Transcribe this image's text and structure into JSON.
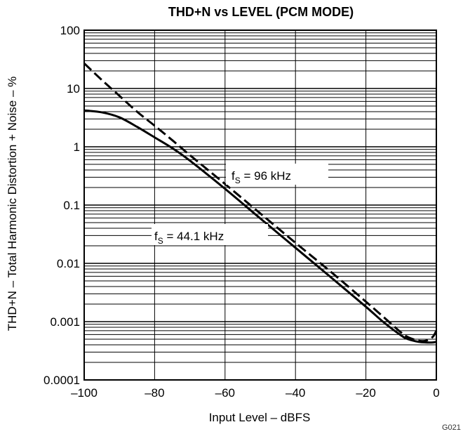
{
  "chart_data": {
    "type": "line",
    "title": "THD+N vs LEVEL (PCM MODE)",
    "xlabel": "Input Level – dBFS",
    "ylabel": "THD+N – Total Harmonic Distortion + Noise – %",
    "xlim": [
      -100,
      0
    ],
    "ylim": [
      0.0001,
      100
    ],
    "y_scale": "log",
    "grid": true,
    "x_ticks": [
      -100,
      -80,
      -60,
      -40,
      -20,
      0
    ],
    "x_tick_labels": [
      "–100",
      "–80",
      "–60",
      "–40",
      "–20",
      "0"
    ],
    "y_ticks": [
      0.0001,
      0.001,
      0.01,
      0.1,
      1,
      10,
      100
    ],
    "y_tick_labels": [
      "0.0001",
      "0.001",
      "0.01",
      "0.1",
      "1",
      "10",
      "100"
    ],
    "series": [
      {
        "name": "fS = 44.1 kHz",
        "style": "solid",
        "x": [
          -100,
          -95,
          -90,
          -85,
          -80,
          -75,
          -70,
          -60,
          -50,
          -40,
          -30,
          -20,
          -15,
          -10,
          -8,
          -5,
          -3,
          -1,
          0
        ],
        "y": [
          4.2,
          3.9,
          3.2,
          2.2,
          1.45,
          0.95,
          0.58,
          0.19,
          0.059,
          0.0185,
          0.0058,
          0.0018,
          0.00098,
          0.00058,
          0.0005,
          0.00045,
          0.00044,
          0.00044,
          0.00045
        ]
      },
      {
        "name": "fS = 96 kHz",
        "style": "dashed",
        "x": [
          -100,
          -95,
          -90,
          -85,
          -80,
          -75,
          -70,
          -60,
          -50,
          -40,
          -30,
          -20,
          -15,
          -10,
          -8,
          -5,
          -3,
          -1,
          0
        ],
        "y": [
          27,
          14,
          7.5,
          4.0,
          2.3,
          1.3,
          0.72,
          0.23,
          0.072,
          0.0225,
          0.0072,
          0.0022,
          0.0012,
          0.00065,
          0.00054,
          0.00047,
          0.00047,
          0.00055,
          0.0007
        ]
      }
    ],
    "annotations": [
      {
        "main": "f",
        "sub": "S",
        "rest": " = 96 kHz"
      },
      {
        "main": "f",
        "sub": "S",
        "rest": " = 44.1 kHz"
      }
    ],
    "figure_code": "G021"
  }
}
